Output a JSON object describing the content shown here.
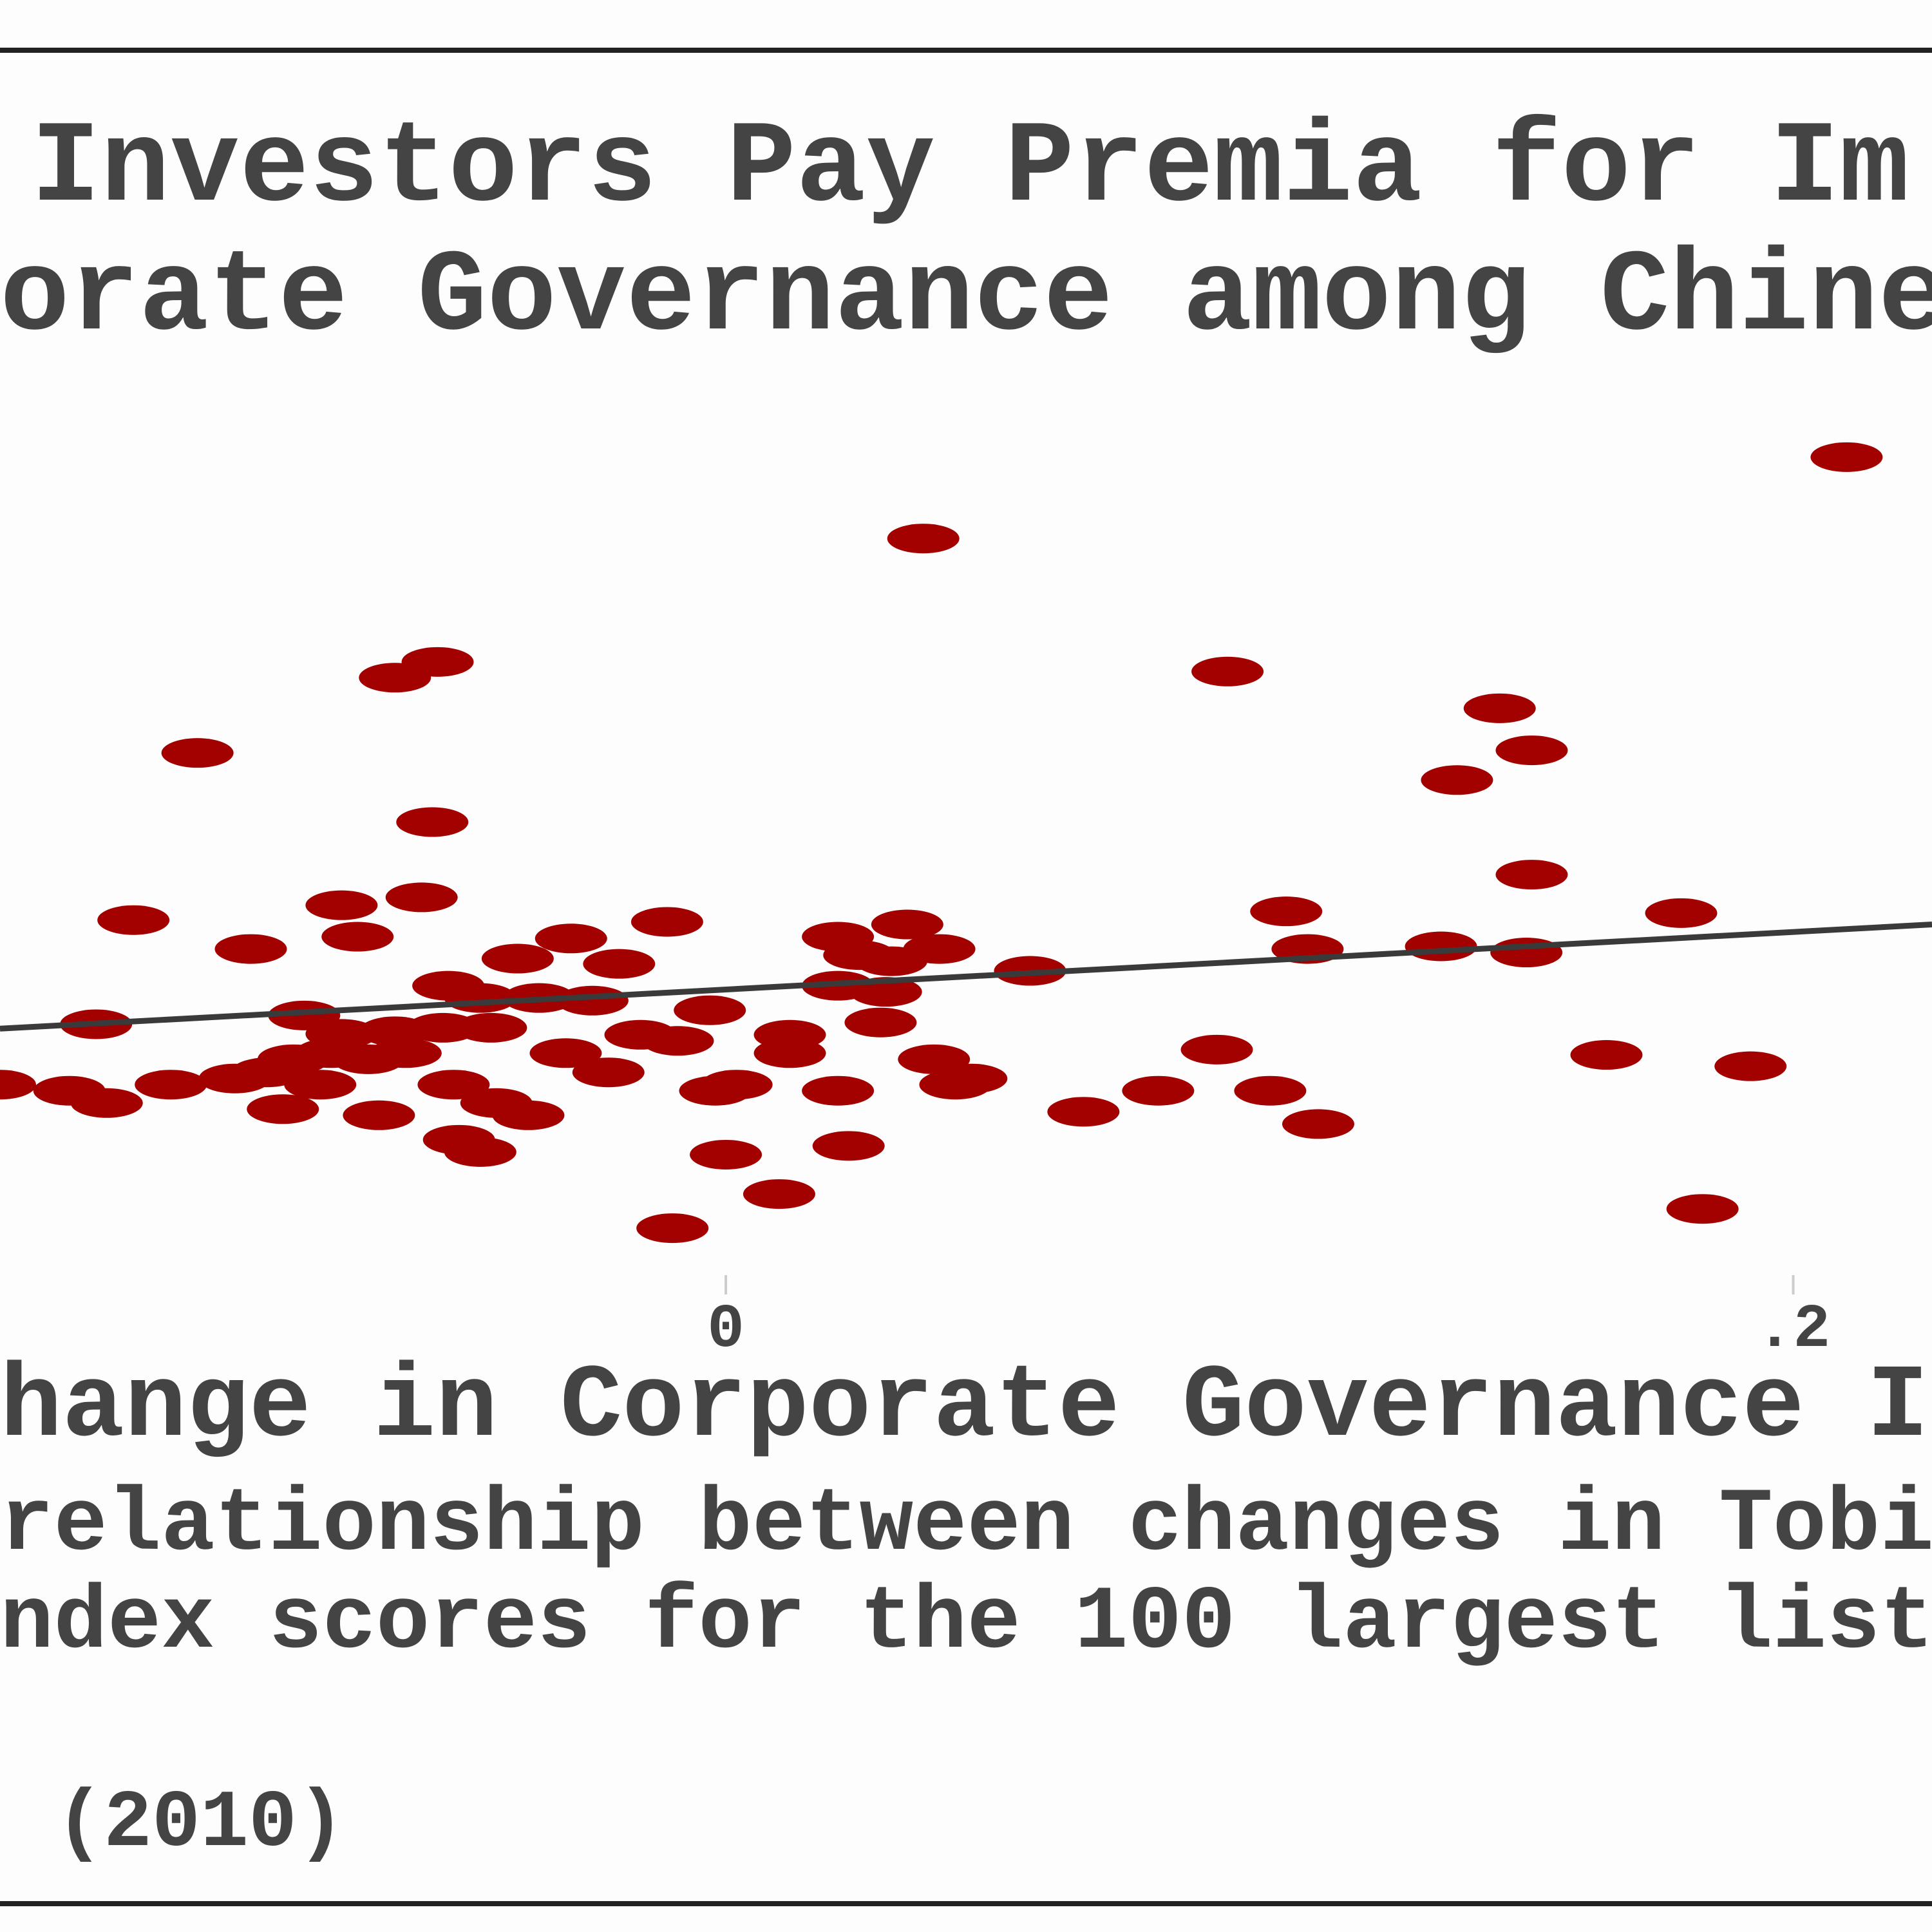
{
  "chart_data": {
    "type": "scatter",
    "title": [
      "Investors Pay Premia for Im",
      "orate Governance among Chine"
    ],
    "xlabel": "hange in Corporate Governance I",
    "caption": [
      "relationship between changes in Tobi",
      "ndex scores for the 100 largest list",
      "(2010)"
    ],
    "xlim": [
      -0.136,
      0.226
    ],
    "xticks": [
      0,
      {
        "value": 0.2,
        "label": ".2"
      }
    ],
    "ylim": [
      0,
      1
    ],
    "grid": false,
    "x": [
      0.21,
      0.037,
      -0.054,
      -0.062,
      0.094,
      -0.099,
      0.145,
      0.151,
      0.137,
      -0.055,
      0.151,
      -0.111,
      -0.072,
      -0.057,
      0.179,
      -0.089,
      -0.069,
      -0.011,
      -0.029,
      -0.039,
      -0.02,
      0.105,
      0.109,
      0.134,
      0.15,
      0.057,
      0.021,
      0.034,
      0.025,
      0.04,
      0.031,
      -0.052,
      -0.046,
      -0.035,
      -0.025,
      -0.118,
      -0.079,
      -0.072,
      -0.062,
      -0.053,
      -0.044,
      -0.003,
      0.021,
      0.03,
      0.029,
      0.012,
      -0.009,
      -0.016,
      -0.03,
      -0.022,
      -0.081,
      -0.074,
      -0.067,
      -0.086,
      -0.076,
      -0.06,
      -0.092,
      -0.104,
      -0.123,
      -0.116,
      -0.136,
      -0.083,
      -0.065,
      -0.051,
      -0.043,
      -0.037,
      -0.05,
      -0.046,
      -0.002,
      0.002,
      0.012,
      0.021,
      0.039,
      0.046,
      0.043,
      0.067,
      0.081,
      0.092,
      0.102,
      0.111,
      0.165,
      0.192,
      0.0,
      0.023,
      0.01,
      -0.01,
      0.183
    ],
    "series": [
      {
        "color": "#a30000",
        "values": [
          0.942,
          0.849,
          0.708,
          0.69,
          0.697,
          0.604,
          0.655,
          0.607,
          0.573,
          0.525,
          0.465,
          0.413,
          0.43,
          0.439,
          0.421,
          0.38,
          0.394,
          0.411,
          0.392,
          0.369,
          0.363,
          0.423,
          0.38,
          0.383,
          0.376,
          0.355,
          0.394,
          0.408,
          0.373,
          0.38,
          0.366,
          0.338,
          0.324,
          0.324,
          0.321,
          0.294,
          0.304,
          0.283,
          0.286,
          0.29,
          0.29,
          0.31,
          0.338,
          0.331,
          0.296,
          0.282,
          0.275,
          0.282,
          0.261,
          0.239,
          0.254,
          0.261,
          0.254,
          0.239,
          0.225,
          0.261,
          0.232,
          0.225,
          0.218,
          0.204,
          0.225,
          0.197,
          0.19,
          0.225,
          0.204,
          0.19,
          0.162,
          0.148,
          0.218,
          0.225,
          0.261,
          0.218,
          0.254,
          0.232,
          0.225,
          0.194,
          0.218,
          0.265,
          0.218,
          0.18,
          0.259,
          0.246,
          0.145,
          0.155,
          0.1,
          0.061,
          0.083
        ]
      }
    ],
    "fit": {
      "color": "#3a3a3a",
      "x": [
        -0.136,
        0.226
      ],
      "y": [
        0.289,
        0.408
      ]
    }
  }
}
